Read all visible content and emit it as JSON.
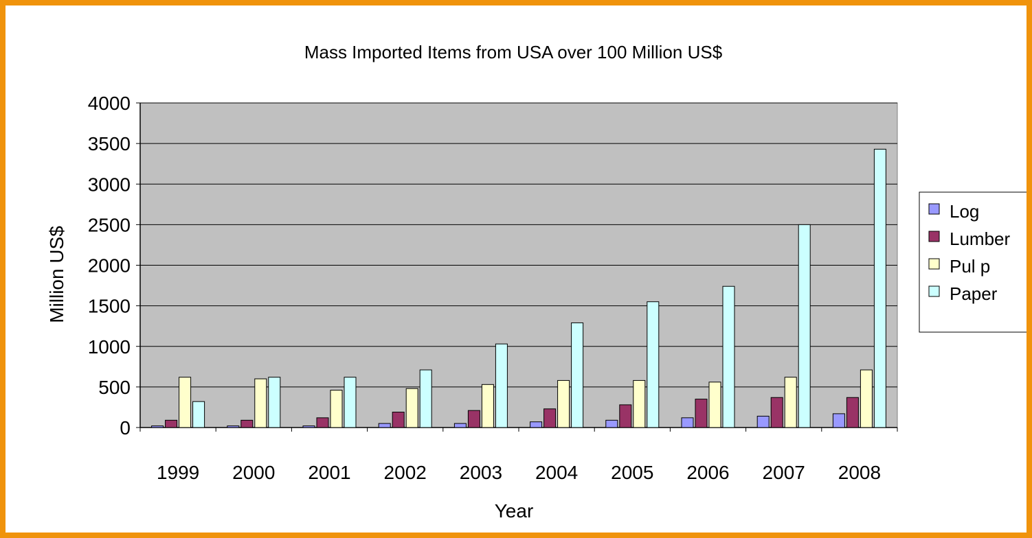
{
  "chart_data": {
    "type": "bar",
    "title": "Mass Imported Items from USA over 100 Million US$",
    "xlabel": "Year",
    "ylabel": "Million US$",
    "ylim": [
      0,
      4000
    ],
    "yticks": [
      "0",
      "500",
      "1000",
      "1500",
      "2000",
      "2500",
      "3000",
      "3500",
      "4000"
    ],
    "grid": true,
    "legend_position": "right",
    "categories": [
      "1999",
      "2000",
      "2001",
      "2002",
      "2003",
      "2004",
      "2005",
      "2006",
      "2007",
      "2008"
    ],
    "series": [
      {
        "name": "Log",
        "color": "#9999ff",
        "values": [
          20,
          20,
          20,
          50,
          50,
          70,
          90,
          120,
          140,
          170
        ]
      },
      {
        "name": "Lumber",
        "color": "#993366",
        "values": [
          90,
          90,
          120,
          190,
          210,
          230,
          280,
          350,
          370,
          370
        ]
      },
      {
        "name": "Pul p",
        "color": "#ffffcc",
        "values": [
          620,
          600,
          460,
          480,
          530,
          580,
          580,
          560,
          620,
          710
        ]
      },
      {
        "name": "Paper",
        "color": "#ccffff",
        "values": [
          320,
          620,
          620,
          710,
          1030,
          1290,
          1550,
          1740,
          2500,
          3430
        ]
      }
    ]
  }
}
